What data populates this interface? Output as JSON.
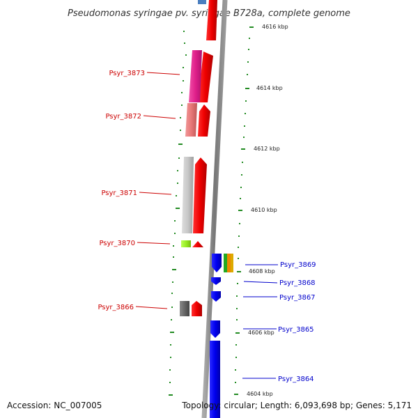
{
  "title": "Pseudomonas syringae pv. syringae B728a, complete genome",
  "footer": {
    "accession": "Accession: NC_007005",
    "summary": "Topology: circular; Length: 6,093,698 bp; Genes: 5,171"
  },
  "kbp_labels": [
    "4616 kbp",
    "4614 kbp",
    "4612 kbp",
    "4610 kbp",
    "4608 kbp",
    "4606 kbp",
    "4604 kbp"
  ],
  "genes_left": [
    {
      "name": "Psyr_3873",
      "color": "#e0208a"
    },
    {
      "name": "Psyr_3872",
      "color": "#e87878"
    },
    {
      "name": "Psyr_3871",
      "color": "#c8c8c8"
    },
    {
      "name": "Psyr_3870",
      "color": "#99ee22"
    },
    {
      "name": "Psyr_3866",
      "color": "#666666"
    }
  ],
  "genes_right": [
    {
      "name": "Psyr_3869",
      "color": "#0000ee"
    },
    {
      "name": "Psyr_3868",
      "color": "#0000ee"
    },
    {
      "name": "Psyr_3867",
      "color": "#0000ee"
    },
    {
      "name": "Psyr_3865",
      "color": "#0000ee"
    },
    {
      "name": "Psyr_3864",
      "color": "#0000ee"
    }
  ],
  "colors": {
    "forward_strand": "#ee0000",
    "reverse_strand": "#0000ee",
    "backbone": "#888888",
    "tick": "#228b22",
    "label_left": "#cc0000",
    "label_right": "#0000cc"
  }
}
